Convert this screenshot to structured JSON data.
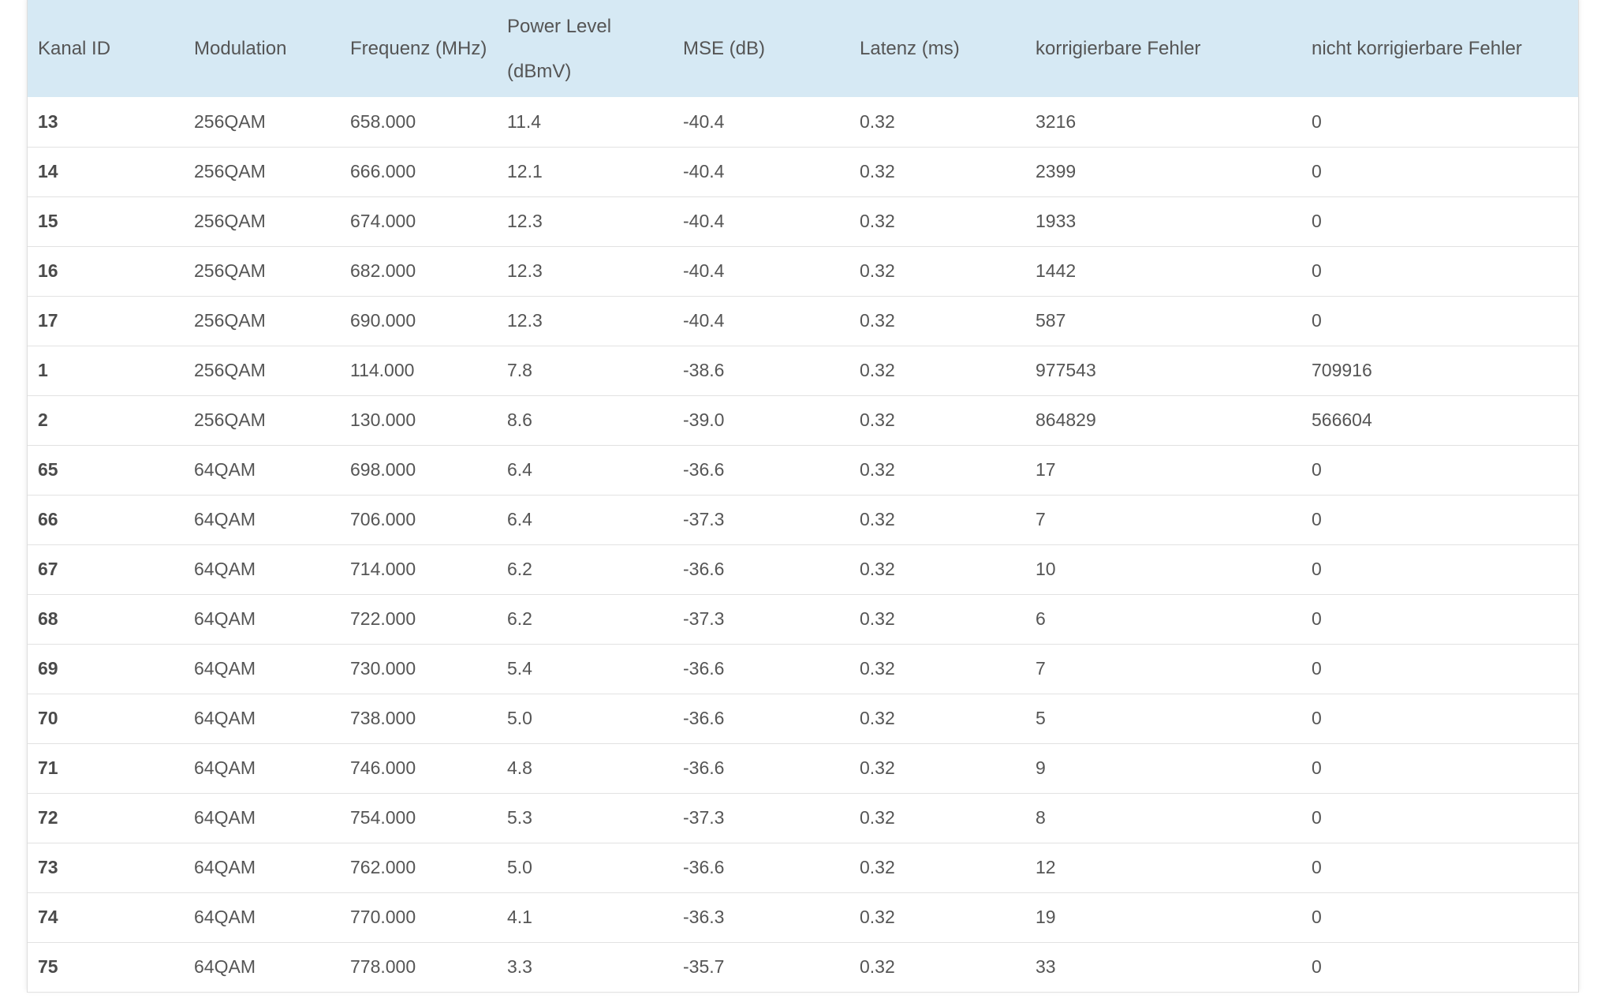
{
  "table": {
    "headers": [
      "Kanal ID",
      "Modulation",
      "Frequenz (MHz)",
      "Power Level (dBmV)",
      "MSE (dB)",
      "Latenz (ms)",
      "korrigierbare Fehler",
      "nicht korrigierbare Fehler"
    ],
    "rows": [
      [
        "13",
        "256QAM",
        "658.000",
        "11.4",
        "-40.4",
        "0.32",
        "3216",
        "0"
      ],
      [
        "14",
        "256QAM",
        "666.000",
        "12.1",
        "-40.4",
        "0.32",
        "2399",
        "0"
      ],
      [
        "15",
        "256QAM",
        "674.000",
        "12.3",
        "-40.4",
        "0.32",
        "1933",
        "0"
      ],
      [
        "16",
        "256QAM",
        "682.000",
        "12.3",
        "-40.4",
        "0.32",
        "1442",
        "0"
      ],
      [
        "17",
        "256QAM",
        "690.000",
        "12.3",
        "-40.4",
        "0.32",
        "587",
        "0"
      ],
      [
        "1",
        "256QAM",
        "114.000",
        "7.8",
        "-38.6",
        "0.32",
        "977543",
        "709916"
      ],
      [
        "2",
        "256QAM",
        "130.000",
        "8.6",
        "-39.0",
        "0.32",
        "864829",
        "566604"
      ],
      [
        "65",
        "64QAM",
        "698.000",
        "6.4",
        "-36.6",
        "0.32",
        "17",
        "0"
      ],
      [
        "66",
        "64QAM",
        "706.000",
        "6.4",
        "-37.3",
        "0.32",
        "7",
        "0"
      ],
      [
        "67",
        "64QAM",
        "714.000",
        "6.2",
        "-36.6",
        "0.32",
        "10",
        "0"
      ],
      [
        "68",
        "64QAM",
        "722.000",
        "6.2",
        "-37.3",
        "0.32",
        "6",
        "0"
      ],
      [
        "69",
        "64QAM",
        "730.000",
        "5.4",
        "-36.6",
        "0.32",
        "7",
        "0"
      ],
      [
        "70",
        "64QAM",
        "738.000",
        "5.0",
        "-36.6",
        "0.32",
        "5",
        "0"
      ],
      [
        "71",
        "64QAM",
        "746.000",
        "4.8",
        "-36.6",
        "0.32",
        "9",
        "0"
      ],
      [
        "72",
        "64QAM",
        "754.000",
        "5.3",
        "-37.3",
        "0.32",
        "8",
        "0"
      ],
      [
        "73",
        "64QAM",
        "762.000",
        "5.0",
        "-36.6",
        "0.32",
        "12",
        "0"
      ],
      [
        "74",
        "64QAM",
        "770.000",
        "4.1",
        "-36.3",
        "0.32",
        "19",
        "0"
      ],
      [
        "75",
        "64QAM",
        "778.000",
        "3.3",
        "-35.7",
        "0.32",
        "33",
        "0"
      ]
    ]
  },
  "colors": {
    "header_background": "#d6e9f4",
    "row_divider": "#e2e2e2",
    "text": "#555555"
  }
}
